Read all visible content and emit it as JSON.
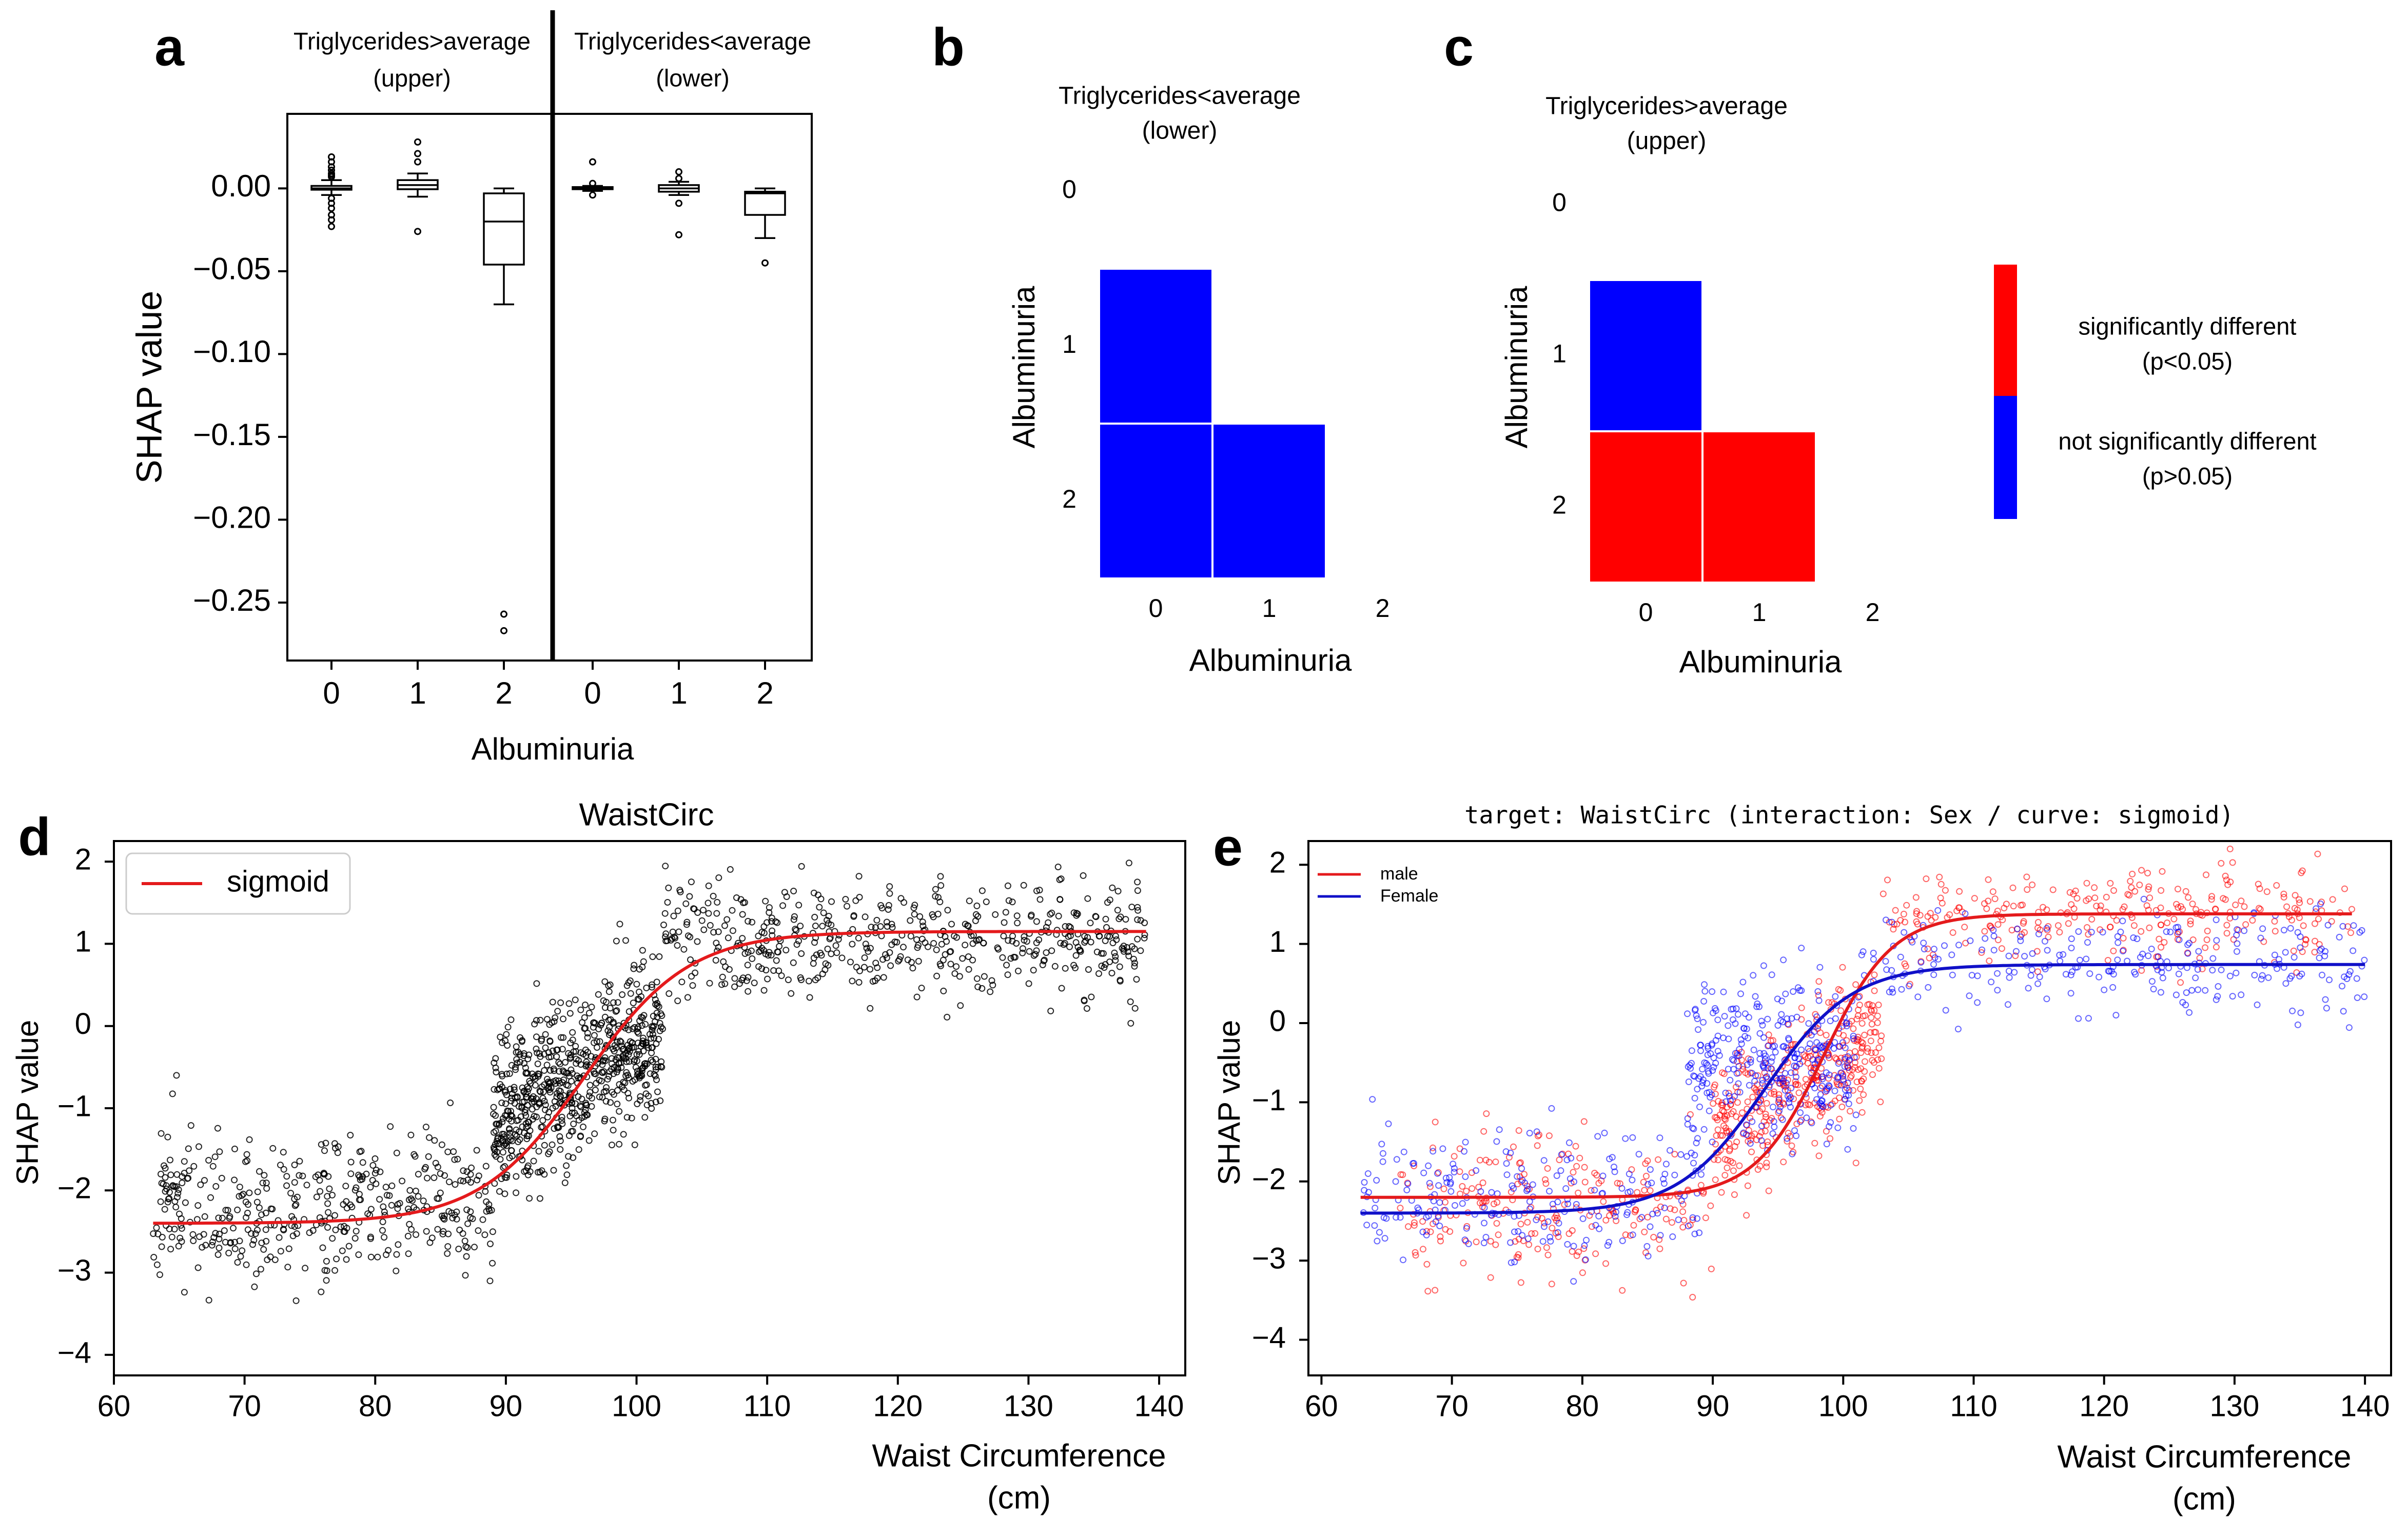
{
  "panel_letters": [
    "a",
    "b",
    "c",
    "d",
    "e"
  ],
  "colors": {
    "red": "#ff0000",
    "blue": "#0000ff",
    "line_red": "#e41a1c",
    "line_blue": "#1010c8",
    "scatter_black": "#000000",
    "axes": "#000000"
  },
  "chart_data": [
    {
      "panel": "a",
      "type": "box",
      "group_labels": [
        "Triglycerides>average\n(upper)",
        "Triglycerides<average\n(lower)"
      ],
      "xlabel": "Albuminuria",
      "ylabel": "SHAP value",
      "ylim": [
        -0.285,
        0.045
      ],
      "yticks": [
        0.0,
        -0.05,
        -0.1,
        -0.15,
        -0.2,
        -0.25
      ],
      "ytick_labels": [
        "0.00",
        "−0.05",
        "−0.10",
        "−0.15",
        "−0.20",
        "−0.25"
      ],
      "categories": [
        "0",
        "1",
        "2",
        "0",
        "1",
        "2"
      ],
      "boxes": [
        {
          "group": "upper",
          "category": "0",
          "whislo": -0.004,
          "q1": -0.0008,
          "med": 0.0,
          "q3": 0.0015,
          "whishi": 0.005,
          "fliers": [
            0.019,
            0.016,
            0.013,
            0.011,
            0.009,
            0.008,
            0.007,
            -0.006,
            -0.009,
            -0.012,
            -0.016,
            -0.019,
            -0.023
          ]
        },
        {
          "group": "upper",
          "category": "1",
          "whislo": -0.005,
          "q1": -0.0005,
          "med": 0.002,
          "q3": 0.005,
          "whishi": 0.009,
          "fliers": [
            0.028,
            0.021,
            0.016,
            -0.026
          ]
        },
        {
          "group": "upper",
          "category": "2",
          "whislo": -0.07,
          "q1": -0.046,
          "med": -0.02,
          "q3": -0.003,
          "whishi": 0.0,
          "fliers": [
            -0.257,
            -0.267
          ]
        },
        {
          "group": "lower",
          "category": "0",
          "whislo": -0.0015,
          "q1": -0.0005,
          "med": 0.0,
          "q3": 0.0008,
          "whishi": 0.0015,
          "fliers": [
            0.016,
            0.003,
            -0.004
          ]
        },
        {
          "group": "lower",
          "category": "1",
          "whislo": -0.004,
          "q1": -0.002,
          "med": 0.0,
          "q3": 0.002,
          "whishi": 0.004,
          "fliers": [
            0.01,
            0.006,
            -0.009,
            -0.028
          ]
        },
        {
          "group": "lower",
          "category": "2",
          "whislo": -0.03,
          "q1": -0.016,
          "med": -0.003,
          "q3": -0.002,
          "whishi": 0.0,
          "fliers": [
            -0.045
          ]
        }
      ]
    },
    {
      "panel": "b",
      "type": "heatmap",
      "title": "Triglycerides<average\n(lower)",
      "xlabel": "Albuminuria",
      "ylabel": "Albuminuria",
      "ticks": [
        "0",
        "1",
        "2"
      ],
      "cells": [
        {
          "row": 1,
          "col": 0,
          "significant": false
        },
        {
          "row": 2,
          "col": 0,
          "significant": false
        },
        {
          "row": 2,
          "col": 1,
          "significant": false
        }
      ]
    },
    {
      "panel": "c",
      "type": "heatmap",
      "title": "Triglycerides>average\n(upper)",
      "xlabel": "Albuminuria",
      "ylabel": "Albuminuria",
      "ticks": [
        "0",
        "1",
        "2"
      ],
      "cells": [
        {
          "row": 1,
          "col": 0,
          "significant": false
        },
        {
          "row": 2,
          "col": 0,
          "significant": true
        },
        {
          "row": 2,
          "col": 1,
          "significant": true
        }
      ]
    },
    {
      "panel": "d",
      "type": "scatter",
      "title": "WaistCirc",
      "xlabel": "Waist Circumference\n(cm)",
      "ylabel": "SHAP value",
      "xlim": [
        60,
        142
      ],
      "ylim": [
        -4.25,
        2.25
      ],
      "xticks": [
        60,
        70,
        80,
        90,
        100,
        110,
        120,
        130,
        140
      ],
      "yticks": [
        2,
        1,
        0,
        -1,
        -2,
        -3,
        -4
      ],
      "ytick_labels": [
        "2",
        "1",
        "0",
        "−1",
        "−2",
        "−3",
        "−4"
      ],
      "legend": {
        "position": "upper-left",
        "entries": [
          "sigmoid"
        ]
      },
      "series": [
        {
          "name": "sigmoid",
          "kind": "line",
          "sigmoid": {
            "lower": -2.4,
            "upper": 1.15,
            "x0": 96.0,
            "k": 0.25
          },
          "x_range": [
            63,
            139
          ]
        }
      ],
      "scatter_clusters": [
        {
          "x_range": [
            63,
            89
          ],
          "y_center": -2.2,
          "y_sd": 0.45,
          "n": 420
        },
        {
          "x_range": [
            89,
            102
          ],
          "y_center": -0.6,
          "y_sd": 0.6,
          "n": 700
        },
        {
          "x_range": [
            102,
            139
          ],
          "y_center": 1.05,
          "y_sd": 0.35,
          "n": 520
        }
      ]
    },
    {
      "panel": "e",
      "type": "scatter",
      "title": "target: WaistCirc (interaction: Sex / curve: sigmoid)",
      "xlabel": "Waist Circumference\n(cm)",
      "ylabel": "SHAP value",
      "xlim": [
        59,
        142
      ],
      "ylim": [
        -4.45,
        2.3
      ],
      "xticks": [
        60,
        70,
        80,
        90,
        100,
        110,
        120,
        130,
        140
      ],
      "yticks": [
        2,
        1,
        0,
        -1,
        -2,
        -3,
        -4
      ],
      "ytick_labels": [
        "2",
        "1",
        "0",
        "−1",
        "−2",
        "−3",
        "−4"
      ],
      "legend": {
        "position": "upper-left",
        "entries": [
          "male",
          "Female"
        ]
      },
      "series": [
        {
          "name": "male",
          "kind": "line",
          "color": "red",
          "sigmoid": {
            "lower": -2.2,
            "upper": 1.38,
            "x0": 98.5,
            "k": 0.38
          },
          "x_range": [
            63,
            139
          ]
        },
        {
          "name": "Female",
          "kind": "line",
          "color": "blue",
          "sigmoid": {
            "lower": -2.4,
            "upper": 0.74,
            "x0": 94.0,
            "k": 0.3
          },
          "x_range": [
            63,
            140
          ]
        }
      ],
      "scatter_clusters": [
        {
          "sex": "male",
          "x_range": [
            66,
            90
          ],
          "y_center": -2.3,
          "y_sd": 0.45,
          "n": 220
        },
        {
          "sex": "male",
          "x_range": [
            90,
            103
          ],
          "y_center": -0.8,
          "y_sd": 0.55,
          "n": 380
        },
        {
          "sex": "male",
          "x_range": [
            103,
            139
          ],
          "y_center": 1.35,
          "y_sd": 0.32,
          "n": 270
        },
        {
          "sex": "female",
          "x_range": [
            63,
            89
          ],
          "y_center": -2.2,
          "y_sd": 0.45,
          "n": 220
        },
        {
          "sex": "female",
          "x_range": [
            88,
            101
          ],
          "y_center": -0.5,
          "y_sd": 0.55,
          "n": 330
        },
        {
          "sex": "female",
          "x_range": [
            101,
            140
          ],
          "y_center": 0.75,
          "y_sd": 0.32,
          "n": 250
        }
      ]
    }
  ],
  "significance_legend": {
    "entries": [
      {
        "label": "significantly different\n(p<0.05)",
        "color": "red"
      },
      {
        "label": "not significantly different\n(p>0.05)",
        "color": "blue"
      }
    ]
  }
}
